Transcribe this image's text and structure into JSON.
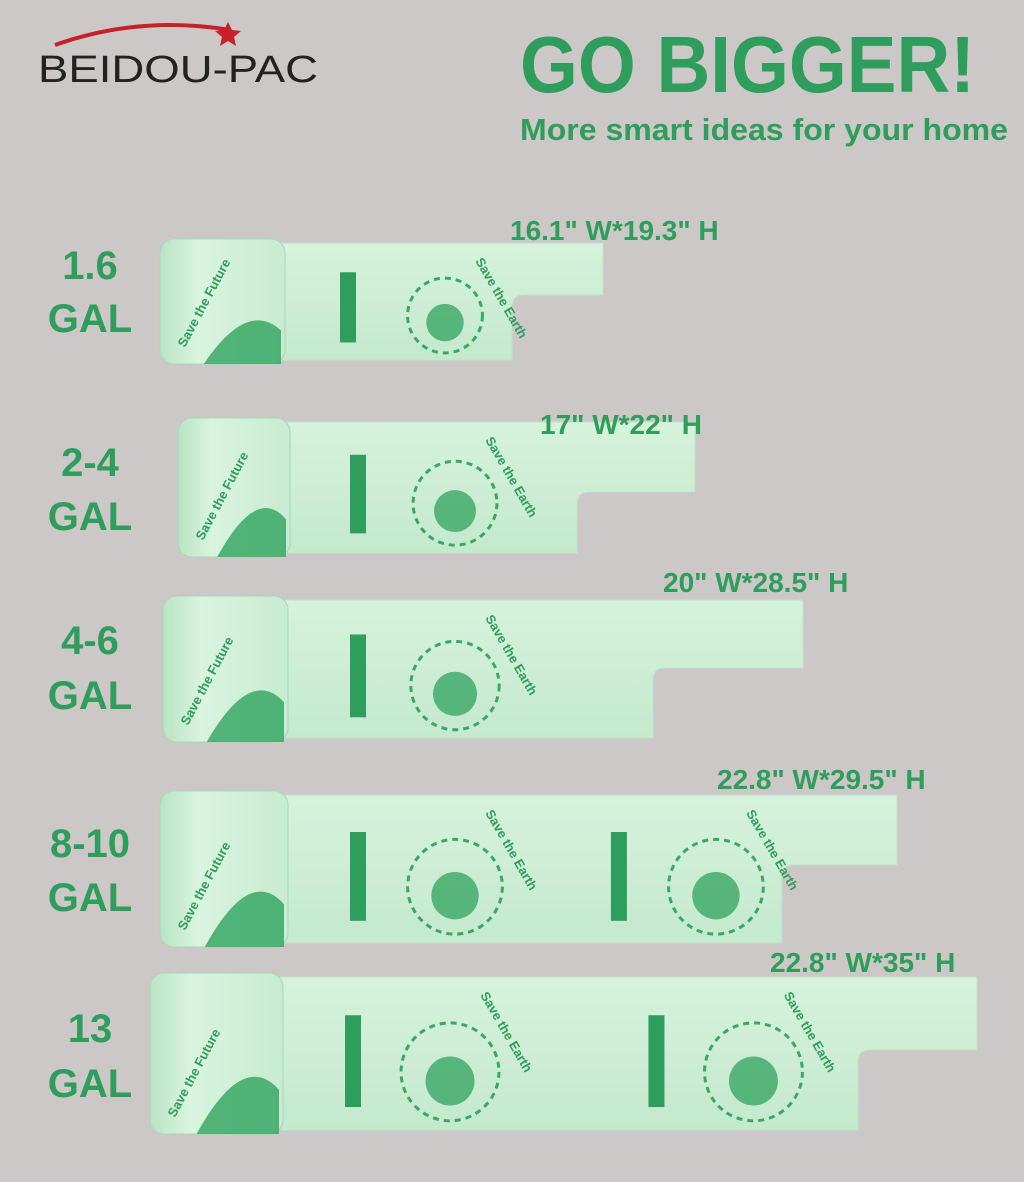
{
  "brand": "BEIDOU-PAC",
  "headline": "GO BIGGER!",
  "subtitle": "More smart ideas for your home",
  "bag_print": {
    "earth": "Save the Earth",
    "future": "Save the Future"
  },
  "sizes": [
    {
      "amount": "1.6",
      "unit": "GAL",
      "dimensions": "16.1\" W*19.3\" H"
    },
    {
      "amount": "2-4",
      "unit": "GAL",
      "dimensions": "17\" W*22\" H"
    },
    {
      "amount": "4-6",
      "unit": "GAL",
      "dimensions": "20\" W*28.5\" H"
    },
    {
      "amount": "8-10",
      "unit": "GAL",
      "dimensions": "22.8\" W*29.5\" H"
    },
    {
      "amount": "13",
      "unit": "GAL",
      "dimensions": "22.8\" W*35\" H"
    }
  ]
}
